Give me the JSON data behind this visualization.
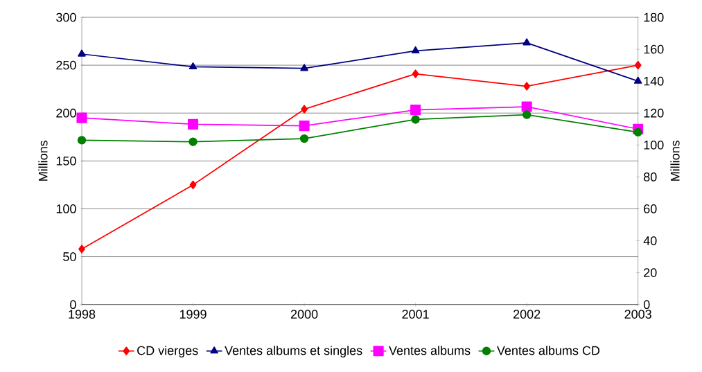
{
  "chart_data": {
    "type": "line",
    "categories": [
      "1998",
      "1999",
      "2000",
      "2001",
      "2002",
      "2003"
    ],
    "series": [
      {
        "name": "CD vierges",
        "color": "#ff0000",
        "marker": "diamond",
        "values": [
          58,
          125,
          204,
          241,
          228,
          250
        ]
      },
      {
        "name": "Ventes albums et singles",
        "color": "#000080",
        "marker": "triangle",
        "axis": "y2",
        "values": [
          157,
          149,
          148,
          159,
          164,
          140
        ]
      },
      {
        "name": "Ventes albums",
        "color": "#ff00ff",
        "marker": "square",
        "axis": "y2",
        "values": [
          117,
          113,
          112,
          122,
          124,
          110
        ]
      },
      {
        "name": "Ventes albums CD",
        "color": "#008000",
        "marker": "circle",
        "axis": "y2",
        "values": [
          103,
          102,
          104,
          116,
          119,
          108
        ]
      }
    ],
    "ylabel": "Millions",
    "y2label": "Millions",
    "ylim": [
      0,
      300
    ],
    "yticks": [
      0,
      50,
      100,
      150,
      200,
      250,
      300
    ],
    "y2lim": [
      0,
      180
    ],
    "y2ticks": [
      0,
      20,
      40,
      60,
      80,
      100,
      120,
      140,
      160,
      180
    ],
    "grid": "y",
    "legend": "bottom",
    "line_style": "solid"
  }
}
